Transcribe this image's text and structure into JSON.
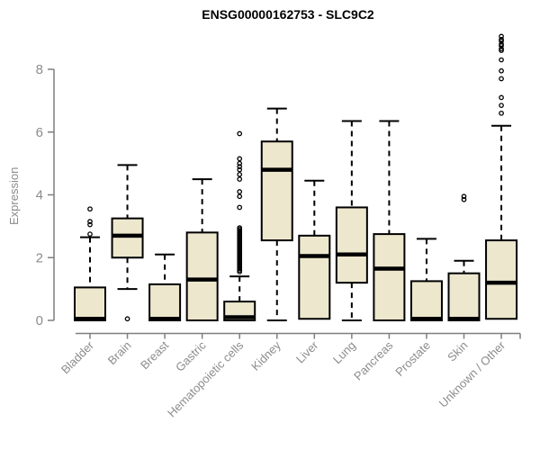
{
  "chart_data": {
    "type": "boxplot",
    "title": "ENSG00000162753 - SLC9C2",
    "ylabel": "Expression",
    "xlabel": "",
    "ylim": [
      0,
      9.1
    ],
    "yticks": [
      0,
      2,
      4,
      6,
      8
    ],
    "grid": false,
    "legend": "none",
    "categories": [
      "Bladder",
      "Brain",
      "Breast",
      "Gastric",
      "Hematopoietic cells",
      "Kidney",
      "Liver",
      "Lung",
      "Pancreas",
      "Prostate",
      "Skin",
      "Unknown / Other"
    ],
    "boxes": [
      {
        "name": "Bladder",
        "q1": 0,
        "median": 0.05,
        "q3": 1.05,
        "whisker_low": 0,
        "whisker_high": 2.65,
        "outliers": [
          2.75,
          3.05,
          3.15,
          3.55
        ]
      },
      {
        "name": "Brain",
        "q1": 2.0,
        "median": 2.7,
        "q3": 3.25,
        "whisker_low": 1.0,
        "whisker_high": 4.95,
        "outliers": [
          0.05
        ]
      },
      {
        "name": "Breast",
        "q1": 0,
        "median": 0.05,
        "q3": 1.15,
        "whisker_low": 0,
        "whisker_high": 2.1,
        "outliers": []
      },
      {
        "name": "Gastric",
        "q1": 0,
        "median": 1.3,
        "q3": 2.8,
        "whisker_low": 0,
        "whisker_high": 4.5,
        "outliers": []
      },
      {
        "name": "Hematopoietic cells",
        "q1": 0,
        "median": 0.1,
        "q3": 0.6,
        "whisker_low": 0,
        "whisker_high": 1.4,
        "outliers": [
          1.55,
          1.6,
          1.65,
          1.7,
          1.75,
          1.8,
          1.85,
          1.9,
          1.95,
          2.0,
          2.05,
          2.1,
          2.15,
          2.2,
          2.25,
          2.3,
          2.35,
          2.4,
          2.45,
          2.5,
          2.55,
          2.6,
          2.65,
          2.7,
          2.75,
          2.8,
          2.85,
          2.9,
          2.95,
          3.6,
          3.95,
          4.1,
          4.5,
          4.65,
          4.8,
          4.9,
          5.0,
          5.15,
          5.95
        ]
      },
      {
        "name": "Kidney",
        "q1": 2.55,
        "median": 4.8,
        "q3": 5.7,
        "whisker_low": 0,
        "whisker_high": 6.75,
        "outliers": []
      },
      {
        "name": "Liver",
        "q1": 0.05,
        "median": 2.05,
        "q3": 2.7,
        "whisker_low": 0.05,
        "whisker_high": 4.45,
        "outliers": []
      },
      {
        "name": "Lung",
        "q1": 1.2,
        "median": 2.1,
        "q3": 3.6,
        "whisker_low": 0,
        "whisker_high": 6.35,
        "outliers": []
      },
      {
        "name": "Pancreas",
        "q1": 0,
        "median": 1.65,
        "q3": 2.75,
        "whisker_low": 0,
        "whisker_high": 6.35,
        "outliers": []
      },
      {
        "name": "Prostate",
        "q1": 0,
        "median": 0.05,
        "q3": 1.25,
        "whisker_low": 0,
        "whisker_high": 2.6,
        "outliers": []
      },
      {
        "name": "Skin",
        "q1": 0,
        "median": 0.05,
        "q3": 1.5,
        "whisker_low": 0,
        "whisker_high": 1.9,
        "outliers": [
          3.85,
          3.95
        ]
      },
      {
        "name": "Unknown / Other",
        "q1": 0.05,
        "median": 1.2,
        "q3": 2.55,
        "whisker_low": 0.05,
        "whisker_high": 6.2,
        "outliers": [
          6.6,
          6.85,
          7.1,
          7.7,
          7.95,
          8.3,
          8.6,
          8.65,
          8.75,
          8.8,
          8.9,
          8.95,
          9.05
        ]
      }
    ],
    "colors": {
      "box_fill": "#EDE7CE",
      "box_stroke": "#000000",
      "median": "#000000",
      "whisker": "#000000",
      "outlier": "#000000",
      "axis_line": "#7F7F7F",
      "tick_label": "#8C8C8C",
      "title": "#000000",
      "background": "#FFFFFF"
    }
  }
}
